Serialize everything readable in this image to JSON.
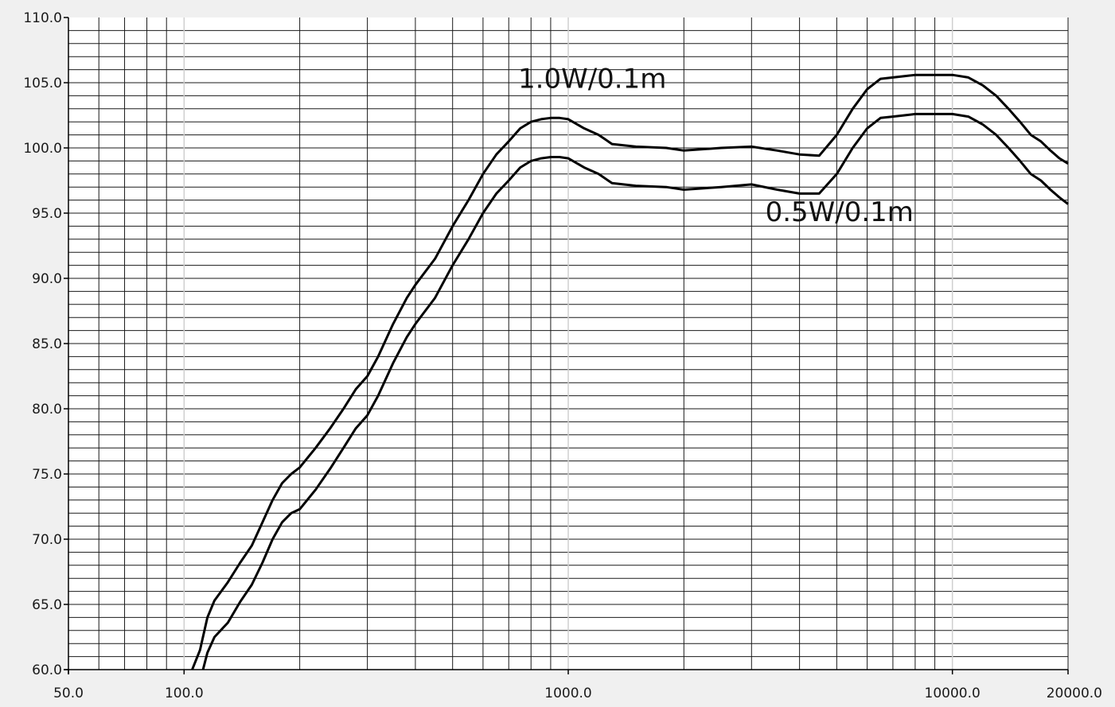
{
  "chart_data": {
    "type": "line",
    "x_scale": "log",
    "xlim": [
      50,
      20000
    ],
    "ylim": [
      60,
      110
    ],
    "grid": true,
    "x_ticks": [
      50,
      100,
      1000,
      10000,
      20000
    ],
    "x_tick_labels": [
      "50.0",
      "100.0",
      "1000.0",
      "10000.0",
      "20000.0"
    ],
    "y_ticks": [
      60,
      65,
      70,
      75,
      80,
      85,
      90,
      95,
      100,
      105,
      110
    ],
    "y_tick_labels": [
      "60.0",
      "65.0",
      "70.0",
      "75.0",
      "80.0",
      "85.0",
      "90.0",
      "95.0",
      "100.0",
      "105.0",
      "110.0"
    ],
    "series": [
      {
        "name": "1.0W/0.1m",
        "x": [
          105,
          110,
          115,
          120,
          130,
          140,
          150,
          160,
          170,
          180,
          190,
          200,
          220,
          240,
          260,
          280,
          300,
          320,
          350,
          380,
          400,
          450,
          500,
          550,
          600,
          650,
          700,
          750,
          800,
          850,
          900,
          950,
          1000,
          1100,
          1200,
          1300,
          1500,
          1800,
          2000,
          2500,
          3000,
          3500,
          4000,
          4500,
          5000,
          5500,
          6000,
          6500,
          7000,
          7500,
          8000,
          8500,
          9000,
          10000,
          11000,
          12000,
          13000,
          14000,
          15000,
          16000,
          17000,
          18000,
          19000,
          20000
        ],
        "y": [
          60,
          61.5,
          64,
          65.3,
          66.7,
          68.2,
          69.5,
          71.3,
          73,
          74.3,
          75,
          75.5,
          77,
          78.5,
          80,
          81.5,
          82.5,
          84,
          86.5,
          88.5,
          89.5,
          91.5,
          94,
          96,
          98,
          99.5,
          100.5,
          101.5,
          102,
          102.2,
          102.3,
          102.3,
          102.2,
          101.5,
          101,
          100.3,
          100.1,
          100,
          99.8,
          100,
          100.1,
          99.8,
          99.5,
          99.4,
          101,
          103,
          104.5,
          105.3,
          105.4,
          105.5,
          105.6,
          105.6,
          105.6,
          105.6,
          105.4,
          104.8,
          104,
          103,
          102,
          101,
          100.5,
          99.8,
          99.2,
          98.8
        ]
      },
      {
        "name": "0.5W/0.1m",
        "x": [
          112,
          115,
          120,
          130,
          140,
          150,
          160,
          170,
          180,
          190,
          200,
          220,
          240,
          260,
          280,
          300,
          320,
          350,
          380,
          400,
          450,
          500,
          550,
          600,
          650,
          700,
          750,
          800,
          850,
          900,
          950,
          1000,
          1100,
          1200,
          1300,
          1500,
          1800,
          2000,
          2500,
          3000,
          3500,
          4000,
          4500,
          5000,
          5500,
          6000,
          6500,
          7000,
          7500,
          8000,
          8500,
          9000,
          10000,
          11000,
          12000,
          13000,
          14000,
          15000,
          16000,
          17000,
          18000,
          19000,
          20000
        ],
        "y": [
          60,
          61.3,
          62.5,
          63.6,
          65.2,
          66.5,
          68.2,
          70,
          71.3,
          72,
          72.3,
          73.8,
          75.4,
          77,
          78.5,
          79.5,
          81,
          83.5,
          85.5,
          86.5,
          88.5,
          91,
          93,
          95,
          96.5,
          97.5,
          98.5,
          99,
          99.2,
          99.3,
          99.3,
          99.2,
          98.5,
          98,
          97.3,
          97.1,
          97,
          96.8,
          97,
          97.2,
          96.8,
          96.5,
          96.5,
          98,
          100,
          101.5,
          102.3,
          102.4,
          102.5,
          102.6,
          102.6,
          102.6,
          102.6,
          102.4,
          101.8,
          101,
          100,
          99,
          98,
          97.5,
          96.8,
          96.2,
          95.7
        ]
      }
    ],
    "annotations": [
      {
        "text": "1.0W/0.1m",
        "x": 1000,
        "y": 104.6
      },
      {
        "text": "0.5W/0.1m",
        "x": 4400,
        "y": 94.4
      }
    ]
  }
}
